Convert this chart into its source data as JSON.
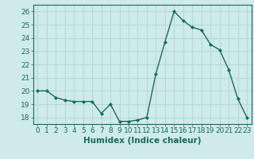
{
  "x": [
    0,
    1,
    2,
    3,
    4,
    5,
    6,
    7,
    8,
    9,
    10,
    11,
    12,
    13,
    14,
    15,
    16,
    17,
    18,
    19,
    20,
    21,
    22,
    23
  ],
  "y": [
    20,
    20,
    19.5,
    19.3,
    19.2,
    19.2,
    19.2,
    18.3,
    19.0,
    17.7,
    17.7,
    17.8,
    18.0,
    21.3,
    23.7,
    26.0,
    25.3,
    24.8,
    24.6,
    23.5,
    23.1,
    21.6,
    19.4,
    18.0
  ],
  "line_color": "#1a6b5a",
  "marker": "D",
  "marker_size": 2.0,
  "bg_color": "#ceeaea",
  "grid_color": "#b8d8d8",
  "xlabel": "Humidex (Indice chaleur)",
  "ylim": [
    17.5,
    26.5
  ],
  "xlim": [
    -0.5,
    23.5
  ],
  "yticks": [
    18,
    19,
    20,
    21,
    22,
    23,
    24,
    25,
    26
  ],
  "xticks": [
    0,
    1,
    2,
    3,
    4,
    5,
    6,
    7,
    8,
    9,
    10,
    11,
    12,
    13,
    14,
    15,
    16,
    17,
    18,
    19,
    20,
    21,
    22,
    23
  ],
  "tick_fontsize": 6.5,
  "label_fontsize": 7.5,
  "linewidth": 1.0
}
